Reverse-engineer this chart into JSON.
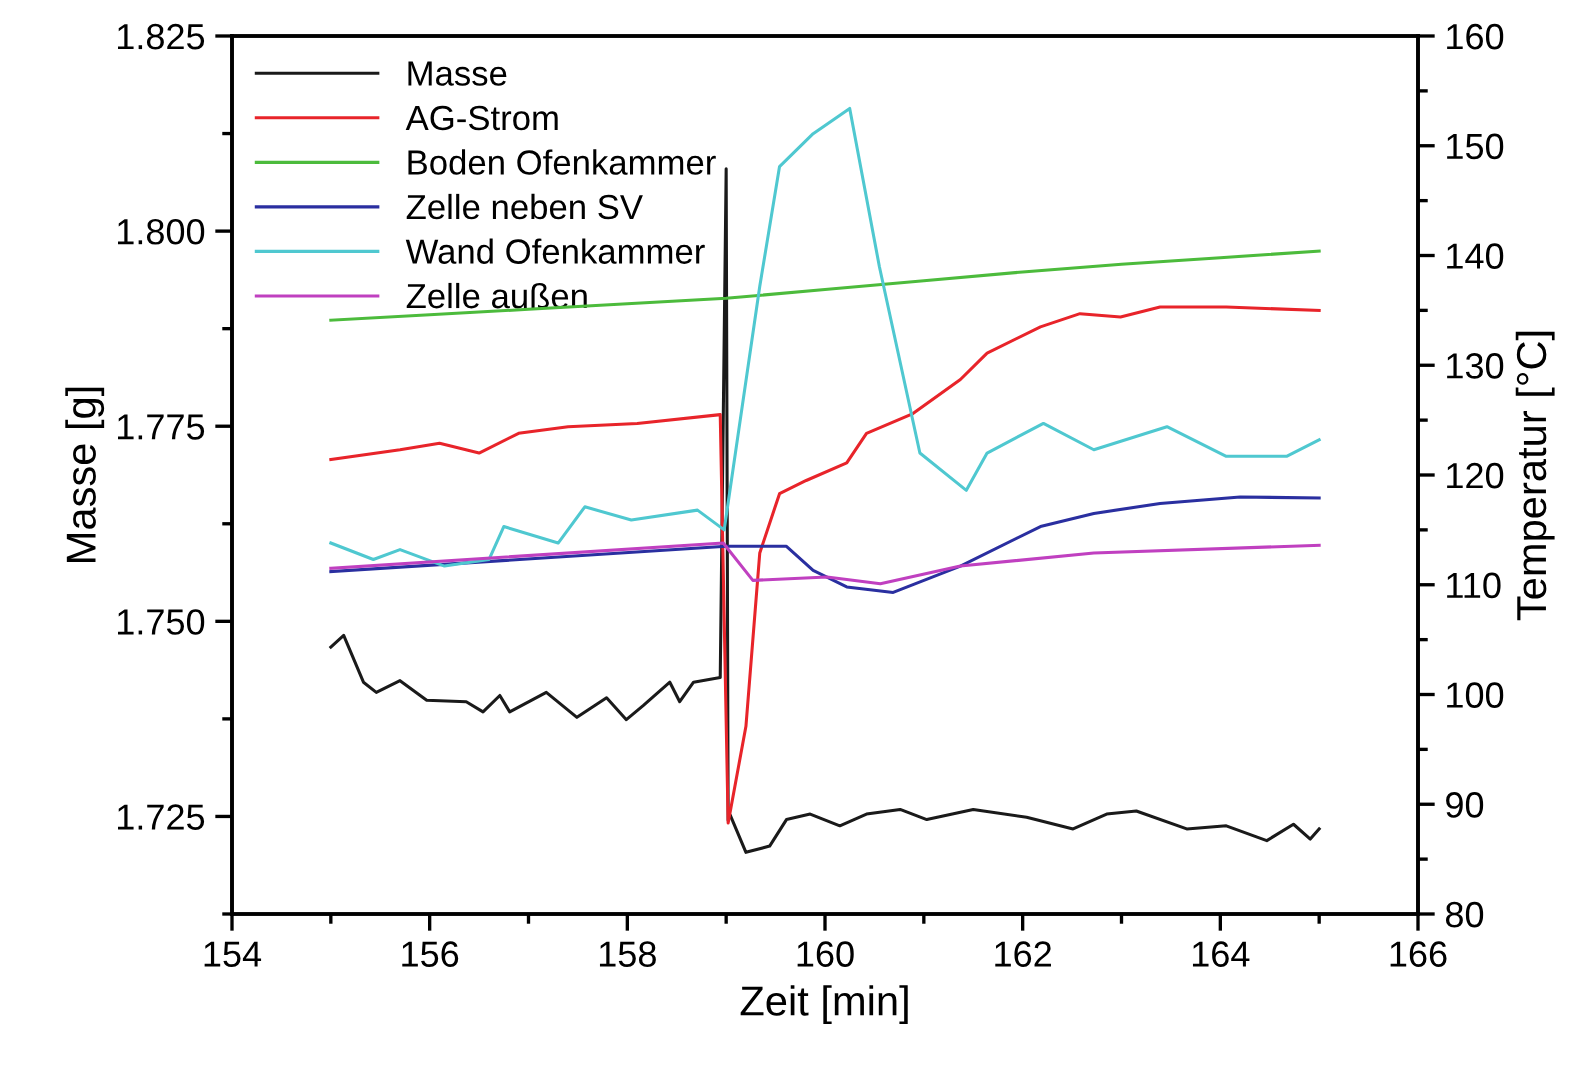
{
  "chart_data": {
    "type": "line",
    "xlabel": "Zeit [min]",
    "ylabel": "Masse [g]",
    "y2label": "Temperatur [°C]",
    "xlim": [
      154,
      166
    ],
    "xticks": [
      154,
      156,
      158,
      160,
      162,
      164,
      166
    ],
    "ylim": [
      1.7125,
      1.825
    ],
    "yticks": [
      {
        "value": 1.725,
        "label": "1.725"
      },
      {
        "value": 1.75,
        "label": "1.750"
      },
      {
        "value": 1.775,
        "label": "1.775"
      },
      {
        "value": 1.8,
        "label": "1.800"
      },
      {
        "value": 1.825,
        "label": "1.825"
      }
    ],
    "y2lim": [
      80,
      160
    ],
    "y2ticks": [
      80,
      90,
      100,
      110,
      120,
      130,
      140,
      150,
      160
    ],
    "grid": false,
    "legend": "top left",
    "marker": "none",
    "line_style": "solid",
    "series": [
      {
        "name": "Masse",
        "color": "#1a1a1a",
        "x": [
          155.0,
          155.13,
          155.33,
          155.46,
          155.7,
          155.97,
          156.37,
          156.54,
          156.71,
          156.81,
          157.18,
          157.49,
          157.79,
          157.99,
          158.16,
          158.43,
          158.53,
          158.67,
          158.94,
          159.0,
          159.02,
          159.04,
          159.2,
          159.44,
          159.61,
          159.85,
          160.15,
          160.42,
          160.76,
          161.03,
          161.5,
          162.04,
          162.51,
          162.85,
          163.15,
          163.66,
          164.06,
          164.47,
          164.74,
          164.91,
          165.0
        ],
        "values": [
          1.7467,
          1.7482,
          1.7422,
          1.7409,
          1.7424,
          1.7399,
          1.7397,
          1.7384,
          1.7405,
          1.7384,
          1.7409,
          1.7377,
          1.7402,
          1.7374,
          1.7392,
          1.7422,
          1.7397,
          1.7422,
          1.7428,
          1.808,
          1.7245,
          1.7252,
          1.7204,
          1.7212,
          1.7246,
          1.7253,
          1.7238,
          1.7253,
          1.7259,
          1.7246,
          1.7259,
          1.7249,
          1.7234,
          1.7253,
          1.7257,
          1.7234,
          1.7238,
          1.7219,
          1.724,
          1.7221,
          1.7234
        ]
      },
      {
        "name": "AG-Strom",
        "color": "#e8242a",
        "axis": "y2",
        "x": [
          155.0,
          155.7,
          156.1,
          156.5,
          156.9,
          157.4,
          158.1,
          158.94,
          159.02,
          159.2,
          159.34,
          159.54,
          159.81,
          160.22,
          160.42,
          160.89,
          161.37,
          161.64,
          162.18,
          162.58,
          162.99,
          163.39,
          164.06,
          165.0
        ],
        "values": [
          121.4,
          122.3,
          122.9,
          122.0,
          123.8,
          124.4,
          124.7,
          125.5,
          88.3,
          97.1,
          112.9,
          118.3,
          119.5,
          121.1,
          123.8,
          125.6,
          128.7,
          131.1,
          133.5,
          134.7,
          134.4,
          135.3,
          135.3,
          135.0
        ]
      },
      {
        "name": "Boden Ofenkammer",
        "color": "#4cbb3c",
        "axis": "y2",
        "x": [
          155,
          156,
          157,
          158,
          159,
          160,
          161,
          162,
          163,
          164,
          165
        ],
        "values": [
          134.1,
          134.6,
          135.1,
          135.6,
          136.1,
          136.9,
          137.7,
          138.5,
          139.2,
          139.8,
          140.4
        ]
      },
      {
        "name": "Zelle neben SV",
        "color": "#2a2fa0",
        "axis": "y2",
        "x": [
          155.0,
          159.0,
          159.61,
          159.88,
          160.22,
          160.69,
          161.37,
          162.18,
          162.72,
          163.39,
          164.2,
          165.0
        ],
        "values": [
          111.2,
          113.5,
          113.5,
          111.3,
          109.8,
          109.3,
          111.7,
          115.3,
          116.5,
          117.4,
          118.0,
          117.9
        ]
      },
      {
        "name": "Wand Ofenkammer",
        "color": "#4fc8d0",
        "axis": "y2",
        "x": [
          155.0,
          155.43,
          155.7,
          156.15,
          156.6,
          156.75,
          157.3,
          157.57,
          158.04,
          158.71,
          158.98,
          159.34,
          159.54,
          159.88,
          160.25,
          160.55,
          160.96,
          161.43,
          161.64,
          162.21,
          162.72,
          163.46,
          164.06,
          164.67,
          165.0
        ],
        "values": [
          113.8,
          112.3,
          113.2,
          111.7,
          112.3,
          115.3,
          113.8,
          117.1,
          115.9,
          116.8,
          115.0,
          137.2,
          148.1,
          151.1,
          153.4,
          139.0,
          122.0,
          118.6,
          122.0,
          124.7,
          122.3,
          124.4,
          121.7,
          121.7,
          123.2
        ]
      },
      {
        "name": "Zelle außen",
        "color": "#c040c0",
        "axis": "y2",
        "x": [
          155.0,
          158.97,
          159.27,
          160.02,
          160.56,
          161.37,
          162.72,
          165.0
        ],
        "values": [
          111.5,
          113.8,
          110.4,
          110.7,
          110.1,
          111.7,
          112.9,
          113.6
        ]
      }
    ]
  }
}
